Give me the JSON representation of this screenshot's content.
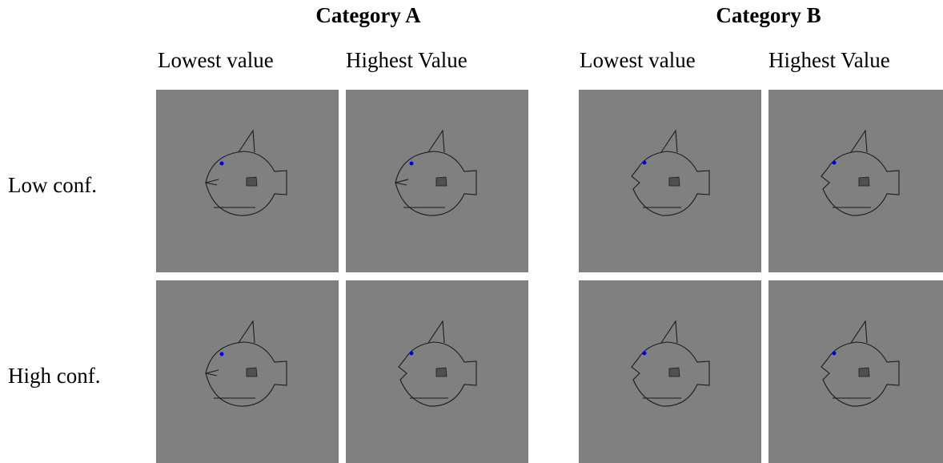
{
  "groups": [
    {
      "title": "Category A",
      "columns": [
        "Lowest value",
        "Highest Value"
      ]
    },
    {
      "title": "Category B",
      "columns": [
        "Lowest value",
        "Highest Value"
      ]
    }
  ],
  "rows": [
    "Low conf.",
    "High conf."
  ]
}
